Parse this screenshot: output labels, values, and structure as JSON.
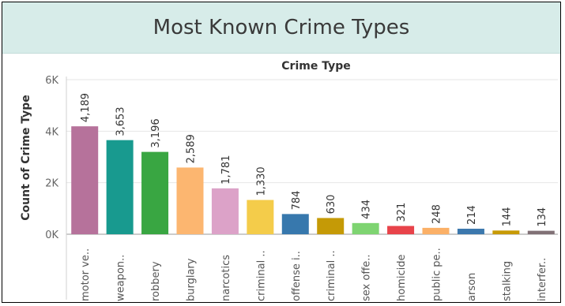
{
  "chart_data": {
    "type": "bar",
    "title": "Most Known Crime Types",
    "xlabel": "Crime Type",
    "ylabel": "Count of Crime Type",
    "ylim": [
      0,
      6000
    ],
    "yticks": [
      0,
      2000,
      4000,
      6000
    ],
    "ytick_labels": [
      "0K",
      "2K",
      "4K",
      "6K"
    ],
    "grid": true,
    "categories": [
      "motor ve..",
      "weapon..",
      "robbery",
      "burglary",
      "narcotics",
      "criminal ..",
      "offense i..",
      "criminal ..",
      "sex offe..",
      "homicide",
      "public pe..",
      "arson",
      "stalking",
      "interfer.."
    ],
    "values": [
      4189,
      3653,
      3196,
      2589,
      1781,
      1330,
      784,
      630,
      434,
      321,
      248,
      214,
      144,
      134
    ],
    "value_labels": [
      "4,189",
      "3,653",
      "3,196",
      "2,589",
      "1,781",
      "1,330",
      "784",
      "630",
      "434",
      "321",
      "248",
      "214",
      "144",
      "134"
    ],
    "colors": [
      "#b6729b",
      "#189a8f",
      "#39a642",
      "#fcb670",
      "#dca2c8",
      "#f4cc4a",
      "#3778ad",
      "#c59a06",
      "#7ed471",
      "#e8434a",
      "#fbb067",
      "#3c78ad",
      "#c79a06",
      "#817176"
    ]
  }
}
